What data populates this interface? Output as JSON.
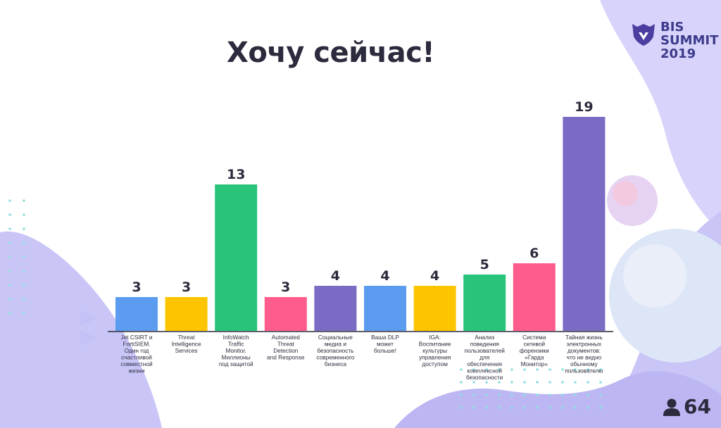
{
  "slide": {
    "title": "Хочу сейчас!",
    "logo_line1": "BIS",
    "logo_line2": "SUMMIT",
    "logo_line3": "2019",
    "count": "64"
  },
  "colors": {
    "blue": "#5b9cf0",
    "yellow": "#fdc500",
    "green": "#28c47a",
    "pink": "#ff5c8e",
    "purple": "#7b6bc4",
    "axis": "#2b2b3d",
    "bg_lavender": "#c9c6f7"
  },
  "chart_data": {
    "type": "bar",
    "categories": [
      [
        "Jet CSIRT и",
        "FortiSIEM.",
        "Один год",
        "счастливой",
        "совместной",
        "жизни"
      ],
      [
        "Threat",
        "Intelligence",
        "Services"
      ],
      [
        "InfoWatch",
        "Traffic",
        "Monitor.",
        "Миллионы",
        "под защитой"
      ],
      [
        "Automated",
        "Threat",
        "Detection",
        "and Response"
      ],
      [
        "Социальные",
        "медиа и",
        "безопасность",
        "современного",
        "бизнеса"
      ],
      [
        "Ваша DLP",
        "может",
        "больше!"
      ],
      [
        "IGA:",
        "Воспитание",
        "культуры",
        "управления",
        "доступом"
      ],
      [
        "Анализ",
        "поведения",
        "пользователей",
        "для",
        "обеспечения",
        "комплексной",
        "безопасности"
      ],
      [
        "Система",
        "сетевой",
        "форензики",
        "«Гарда",
        "Монитор»"
      ],
      [
        "Тайная жизнь",
        "электронных",
        "документов:",
        "что не видно",
        "обычному",
        "пользователю"
      ]
    ],
    "values": [
      3,
      3,
      13,
      3,
      4,
      4,
      4,
      5,
      6,
      19
    ],
    "bar_colors": [
      "#5b9cf0",
      "#fdc500",
      "#28c47a",
      "#ff5c8e",
      "#7b6bc4",
      "#5b9cf0",
      "#fdc500",
      "#28c47a",
      "#ff5c8e",
      "#7b6bc4"
    ],
    "ylim": [
      0,
      19
    ],
    "grid": false,
    "data_labels": true
  }
}
